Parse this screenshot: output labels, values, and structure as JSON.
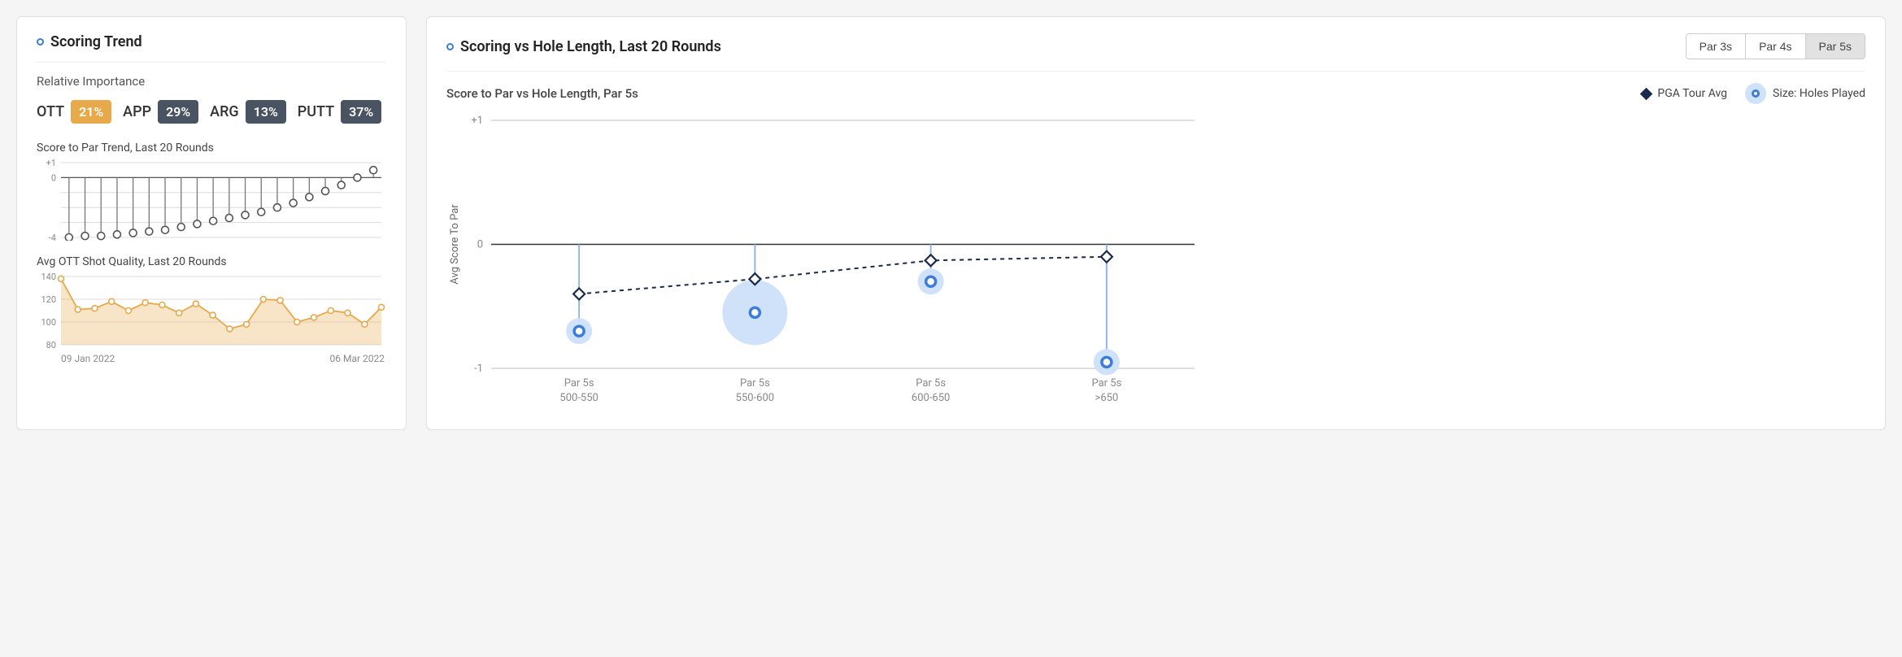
{
  "left_card": {
    "title": "Scoring Trend",
    "relative_importance": {
      "label": "Relative Importance",
      "items": [
        {
          "key": "OTT",
          "value": "21%",
          "bg": "#e8a94a"
        },
        {
          "key": "APP",
          "value": "29%",
          "bg": "#4a5361"
        },
        {
          "key": "ARG",
          "value": "13%",
          "bg": "#4a5361"
        },
        {
          "key": "PUTT",
          "value": "37%",
          "bg": "#4a5361"
        }
      ]
    },
    "score_trend": {
      "title": "Score to Par Trend, Last 20 Rounds",
      "type": "lollipop",
      "ylim": [
        -4,
        1
      ],
      "ytick_labels": [
        "+1",
        "0",
        "-4"
      ],
      "ytick_values": [
        1,
        0,
        -4
      ],
      "grid_color": "#dcdcdc",
      "baseline_color": "#555",
      "stem_color": "#777",
      "marker_stroke": "#555",
      "marker_fill": "#fff",
      "marker_radius": 4.5,
      "values": [
        -4,
        -3.9,
        -3.9,
        -3.8,
        -3.7,
        -3.6,
        -3.5,
        -3.3,
        -3.1,
        -2.9,
        -2.7,
        -2.5,
        -2.3,
        -2.0,
        -1.7,
        -1.3,
        -0.9,
        -0.5,
        0.0,
        0.5
      ]
    },
    "ott_quality": {
      "title": "Avg OTT Shot Quality, Last 20 Rounds",
      "type": "area-line",
      "ylim": [
        80,
        140
      ],
      "yticks": [
        80,
        100,
        120,
        140
      ],
      "grid_color": "#dcdcdc",
      "line_color": "#e8a94a",
      "fill_color": "rgba(232,169,74,0.30)",
      "marker_stroke": "#e8a94a",
      "marker_fill": "#fff",
      "marker_radius": 3.5,
      "values": [
        138,
        111,
        112,
        118,
        110,
        117,
        115,
        108,
        116,
        106,
        94,
        98,
        120,
        119,
        100,
        104,
        110,
        108,
        98,
        113
      ]
    },
    "date_axis": {
      "start": "09 Jan 2022",
      "end": "06 Mar 2022"
    }
  },
  "right_card": {
    "title": "Scoring vs Hole Length, Last 20 Rounds",
    "tabs": [
      {
        "label": "Par 3s",
        "active": false
      },
      {
        "label": "Par 4s",
        "active": false
      },
      {
        "label": "Par 5s",
        "active": true
      }
    ],
    "subtitle": "Score to Par vs Hole Length, Par 5s",
    "legend": {
      "pga": "PGA Tour Avg",
      "size": "Size: Holes Played"
    },
    "chart": {
      "type": "bubble-with-line",
      "y_axis_label": "Avg Score To Par",
      "ylim": [
        -1,
        1
      ],
      "yticks": [
        {
          "v": 1,
          "label": "+1"
        },
        {
          "v": 0,
          "label": "0"
        },
        {
          "v": -1,
          "label": "-1"
        }
      ],
      "grid_color": "#bfbfbf",
      "zero_color": "#333",
      "stem_color": "#8fb8e8",
      "bubble_fill": "#cfe2f9",
      "bubble_inner_stroke": "#3b7dd8",
      "bubble_inner_fill": "#fff",
      "pga_line_color": "#1a2a4a",
      "pga_marker_fill": "#fff",
      "categories": [
        {
          "line1": "Par 5s",
          "line2": "500-550",
          "player": -0.7,
          "pga": -0.4,
          "size_r": 16
        },
        {
          "line1": "Par 5s",
          "line2": "550-600",
          "player": -0.55,
          "pga": -0.28,
          "size_r": 40
        },
        {
          "line1": "Par 5s",
          "line2": "600-650",
          "player": -0.3,
          "pga": -0.13,
          "size_r": 16
        },
        {
          "line1": "Par 5s",
          "line2": ">650",
          "player": -0.95,
          "pga": -0.1,
          "size_r": 16
        }
      ]
    }
  },
  "colors": {
    "accent_blue": "#3b7dd8",
    "text_muted": "#888"
  }
}
